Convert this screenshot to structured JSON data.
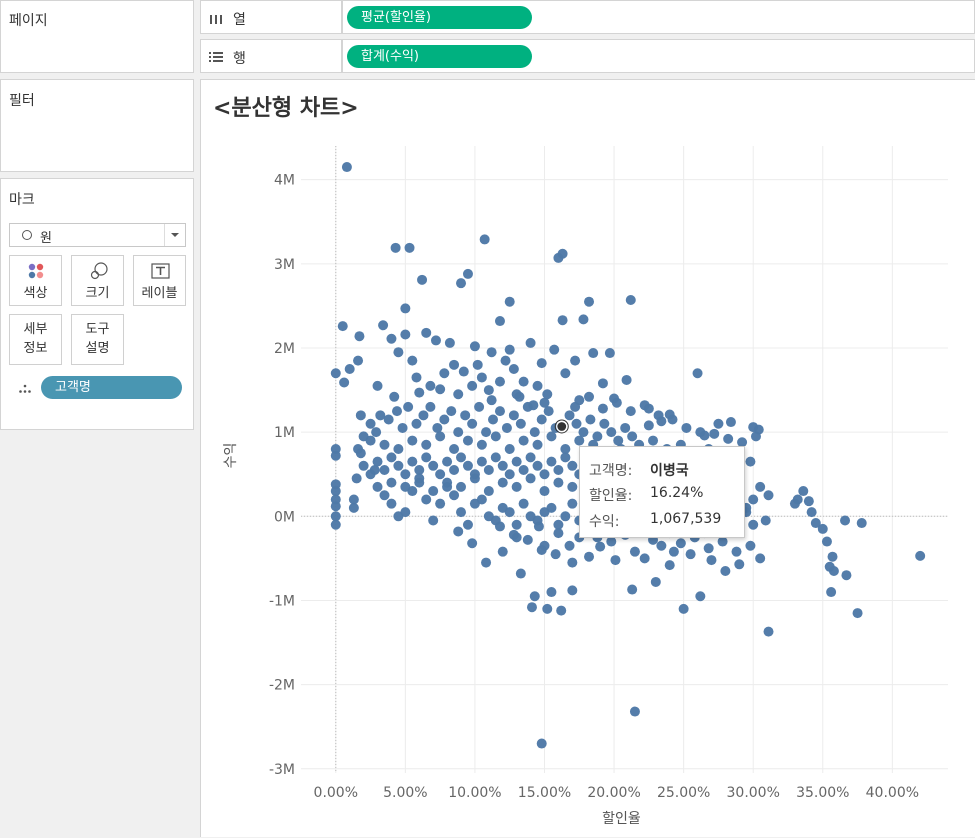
{
  "panels": {
    "pages_title": "페이지",
    "filters_title": "필터",
    "marks_title": "마크"
  },
  "marks": {
    "type": "원",
    "buttons": [
      {
        "label": "색상",
        "icon": "color-dots-icon"
      },
      {
        "label": "크기",
        "icon": "size-icon"
      },
      {
        "label": "레이블",
        "icon": "label-T-icon"
      }
    ],
    "detail_label_1": "세부",
    "detail_label_2": "정보",
    "tooltip_label_1": "도구",
    "tooltip_label_2": "설명",
    "detail_pill": "고객명"
  },
  "shelves": {
    "columns_label": "열",
    "columns_pill": "평균(할인율)",
    "rows_label": "행",
    "rows_pill": "합계(수익)",
    "pill_color": "#00b180"
  },
  "viz": {
    "title": "<분산형 차트>"
  },
  "tooltip": {
    "customer_key": "고객명:",
    "customer_value": "이병국",
    "discount_key": "할인율:",
    "discount_value": "16.24%",
    "profit_key": "수익:",
    "profit_value": "1,067,539"
  },
  "chart_data": {
    "type": "scatter",
    "xlabel": "할인율",
    "ylabel": "수익",
    "xlim": [
      -0.025,
      0.44
    ],
    "ylim": [
      -3.05,
      4.4
    ],
    "x_ticks": [
      0,
      0.05,
      0.1,
      0.15,
      0.2,
      0.25,
      0.3,
      0.35,
      0.4
    ],
    "x_tick_labels": [
      "0.00%",
      "5.00%",
      "10.00%",
      "15.00%",
      "20.00%",
      "25.00%",
      "30.00%",
      "35.00%",
      "40.00%"
    ],
    "y_ticks": [
      4,
      3,
      2,
      1,
      0,
      -1,
      -2,
      -3
    ],
    "y_tick_labels": [
      "4M",
      "3M",
      "2M",
      "1M",
      "0M",
      "-1M",
      "-2M",
      "-3M"
    ],
    "point_color": "#4e79a7",
    "highlight": {
      "x": 0.1624,
      "y": 1.0675
    },
    "grid": true,
    "points": [
      [
        0.008,
        4.15
      ],
      [
        0.043,
        3.19
      ],
      [
        0.053,
        3.19
      ],
      [
        0.107,
        3.29
      ],
      [
        0.095,
        2.88
      ],
      [
        0.09,
        2.77
      ],
      [
        0.062,
        2.81
      ],
      [
        0.05,
        2.47
      ],
      [
        0.16,
        3.07
      ],
      [
        0.163,
        3.12
      ],
      [
        0.125,
        2.55
      ],
      [
        0.118,
        2.32
      ],
      [
        0.212,
        2.57
      ],
      [
        0.182,
        2.55
      ],
      [
        0.163,
        2.33
      ],
      [
        0.178,
        2.34
      ],
      [
        0.005,
        2.26
      ],
      [
        0.017,
        2.14
      ],
      [
        0.034,
        2.27
      ],
      [
        0.04,
        2.11
      ],
      [
        0.05,
        2.16
      ],
      [
        0.065,
        2.18
      ],
      [
        0.072,
        2.09
      ],
      [
        0.082,
        2.06
      ],
      [
        0.1,
        2.02
      ],
      [
        0.112,
        1.95
      ],
      [
        0.125,
        1.98
      ],
      [
        0.14,
        2.06
      ],
      [
        0.157,
        1.98
      ],
      [
        0.185,
        1.94
      ],
      [
        0.197,
        1.94
      ],
      [
        0.209,
        1.62
      ],
      [
        0.26,
        1.7
      ],
      [
        0.0,
        1.7
      ],
      [
        0.01,
        1.75
      ],
      [
        0.016,
        1.85
      ],
      [
        0.03,
        1.55
      ],
      [
        0.045,
        1.95
      ],
      [
        0.055,
        1.85
      ],
      [
        0.085,
        1.8
      ],
      [
        0.092,
        1.72
      ],
      [
        0.105,
        1.65
      ],
      [
        0.118,
        1.6
      ],
      [
        0.135,
        1.6
      ],
      [
        0.148,
        1.82
      ],
      [
        0.165,
        1.7
      ],
      [
        0.006,
        1.59
      ],
      [
        0.042,
        1.42
      ],
      [
        0.06,
        1.47
      ],
      [
        0.075,
        1.51
      ],
      [
        0.088,
        1.45
      ],
      [
        0.11,
        1.5
      ],
      [
        0.13,
        1.45
      ],
      [
        0.15,
        1.35
      ],
      [
        0.175,
        1.38
      ],
      [
        0.2,
        1.4
      ],
      [
        0.225,
        1.28
      ],
      [
        0.24,
        1.21
      ],
      [
        0.018,
        1.2
      ],
      [
        0.029,
        1.0
      ],
      [
        0.225,
        1.08
      ],
      [
        0.234,
        1.13
      ],
      [
        0.265,
        0.96
      ],
      [
        0.275,
        1.1
      ],
      [
        0.284,
        1.12
      ],
      [
        0.3,
        1.06
      ],
      [
        0.304,
        1.03
      ],
      [
        0.305,
        0.35
      ],
      [
        0.311,
        0.25
      ],
      [
        0.33,
        0.15
      ],
      [
        0.336,
        0.3
      ],
      [
        0.332,
        0.2
      ],
      [
        0.34,
        0.18
      ],
      [
        0.342,
        0.05
      ],
      [
        0.345,
        -0.08
      ],
      [
        0.35,
        -0.15
      ],
      [
        0.353,
        -0.3
      ],
      [
        0.357,
        -0.48
      ],
      [
        0.366,
        -0.05
      ],
      [
        0.378,
        -0.08
      ],
      [
        0.355,
        -0.6
      ],
      [
        0.358,
        -0.65
      ],
      [
        0.367,
        -0.7
      ],
      [
        0.356,
        -0.9
      ],
      [
        0.375,
        -1.15
      ],
      [
        0.42,
        -0.47
      ],
      [
        0.311,
        -1.37
      ],
      [
        0.309,
        -0.05
      ],
      [
        0.305,
        -0.5
      ],
      [
        0.29,
        -0.57
      ],
      [
        0.28,
        -0.65
      ],
      [
        0.27,
        -0.52
      ],
      [
        0.262,
        -0.95
      ],
      [
        0.255,
        -0.45
      ],
      [
        0.25,
        -1.1
      ],
      [
        0.24,
        -0.58
      ],
      [
        0.23,
        -0.78
      ],
      [
        0.213,
        -0.87
      ],
      [
        0.201,
        -0.52
      ],
      [
        0.19,
        -0.36
      ],
      [
        0.182,
        -0.48
      ],
      [
        0.17,
        -0.55
      ],
      [
        0.17,
        -0.88
      ],
      [
        0.162,
        -1.12
      ],
      [
        0.155,
        -0.9
      ],
      [
        0.152,
        -1.1
      ],
      [
        0.143,
        -0.95
      ],
      [
        0.141,
        -1.08
      ],
      [
        0.133,
        -0.68
      ],
      [
        0.15,
        -0.35
      ],
      [
        0.215,
        -2.32
      ],
      [
        0.148,
        -2.7
      ],
      [
        0.108,
        -0.55
      ],
      [
        0.12,
        -0.42
      ],
      [
        0.13,
        -0.25
      ],
      [
        0.146,
        -0.12
      ],
      [
        0.16,
        -0.2
      ],
      [
        0.175,
        -0.25
      ],
      [
        0.215,
        -0.42
      ],
      [
        0.222,
        -0.5
      ],
      [
        0.234,
        -0.35
      ],
      [
        0.243,
        -0.42
      ],
      [
        0.0,
        0.8
      ],
      [
        0.0,
        0.72
      ],
      [
        0.0,
        0.38
      ],
      [
        0.0,
        0.3
      ],
      [
        0.0,
        0.2
      ],
      [
        0.0,
        0.12
      ],
      [
        0.0,
        0.0
      ],
      [
        0.0,
        -0.1
      ],
      [
        0.013,
        0.1
      ],
      [
        0.013,
        0.2
      ],
      [
        0.015,
        0.45
      ],
      [
        0.016,
        0.8
      ],
      [
        0.018,
        0.75
      ],
      [
        0.02,
        0.95
      ],
      [
        0.025,
        0.9
      ],
      [
        0.028,
        0.55
      ],
      [
        0.03,
        0.35
      ],
      [
        0.035,
        0.25
      ],
      [
        0.04,
        0.15
      ],
      [
        0.045,
        0.0
      ],
      [
        0.05,
        0.05
      ],
      [
        0.055,
        0.3
      ],
      [
        0.06,
        0.4
      ],
      [
        0.065,
        0.2
      ],
      [
        0.07,
        -0.05
      ],
      [
        0.075,
        0.15
      ],
      [
        0.08,
        0.35
      ],
      [
        0.085,
        0.25
      ],
      [
        0.09,
        0.05
      ],
      [
        0.095,
        -0.1
      ],
      [
        0.1,
        0.15
      ],
      [
        0.105,
        0.2
      ],
      [
        0.11,
        0.0
      ],
      [
        0.115,
        -0.05
      ],
      [
        0.12,
        0.1
      ],
      [
        0.125,
        0.05
      ],
      [
        0.13,
        -0.1
      ],
      [
        0.135,
        0.15
      ],
      [
        0.14,
        0.0
      ],
      [
        0.145,
        -0.05
      ],
      [
        0.15,
        0.05
      ],
      [
        0.155,
        0.1
      ],
      [
        0.16,
        -0.1
      ],
      [
        0.165,
        0.0
      ],
      [
        0.17,
        0.15
      ],
      [
        0.175,
        -0.05
      ],
      [
        0.18,
        0.05
      ],
      [
        0.185,
        0.1
      ],
      [
        0.19,
        0.2
      ],
      [
        0.195,
        0.05
      ],
      [
        0.2,
        -0.15
      ],
      [
        0.205,
        0.0
      ],
      [
        0.21,
        0.1
      ],
      [
        0.215,
        0.25
      ],
      [
        0.22,
        0.05
      ],
      [
        0.225,
        -0.05
      ],
      [
        0.23,
        0.1
      ],
      [
        0.235,
        0.0
      ],
      [
        0.24,
        -0.2
      ],
      [
        0.245,
        0.05
      ],
      [
        0.25,
        0.15
      ],
      [
        0.255,
        -0.1
      ],
      [
        0.26,
        0.05
      ],
      [
        0.265,
        -0.2
      ],
      [
        0.27,
        0.0
      ],
      [
        0.275,
        -0.05
      ],
      [
        0.28,
        0.1
      ],
      [
        0.285,
        -0.15
      ],
      [
        0.29,
        0.0
      ],
      [
        0.295,
        0.05
      ],
      [
        0.3,
        -0.1
      ],
      [
        0.025,
        1.1
      ],
      [
        0.032,
        1.2
      ],
      [
        0.038,
        1.15
      ],
      [
        0.044,
        1.25
      ],
      [
        0.048,
        1.05
      ],
      [
        0.052,
        1.3
      ],
      [
        0.058,
        1.1
      ],
      [
        0.063,
        1.2
      ],
      [
        0.068,
        1.3
      ],
      [
        0.073,
        1.05
      ],
      [
        0.078,
        1.15
      ],
      [
        0.083,
        1.25
      ],
      [
        0.088,
        1.0
      ],
      [
        0.093,
        1.2
      ],
      [
        0.098,
        1.1
      ],
      [
        0.103,
        1.3
      ],
      [
        0.108,
        1.0
      ],
      [
        0.113,
        1.15
      ],
      [
        0.118,
        1.25
      ],
      [
        0.123,
        1.05
      ],
      [
        0.128,
        1.2
      ],
      [
        0.133,
        1.1
      ],
      [
        0.138,
        1.3
      ],
      [
        0.143,
        1.0
      ],
      [
        0.148,
        1.15
      ],
      [
        0.153,
        1.25
      ],
      [
        0.158,
        1.05
      ],
      [
        0.168,
        1.2
      ],
      [
        0.173,
        1.1
      ],
      [
        0.178,
        1.0
      ],
      [
        0.183,
        1.15
      ],
      [
        0.188,
        0.95
      ],
      [
        0.193,
        1.1
      ],
      [
        0.198,
        1.0
      ],
      [
        0.203,
        0.9
      ],
      [
        0.208,
        1.05
      ],
      [
        0.213,
        0.95
      ],
      [
        0.218,
        0.85
      ],
      [
        0.228,
        0.9
      ],
      [
        0.238,
        0.8
      ],
      [
        0.248,
        0.85
      ],
      [
        0.258,
        0.75
      ],
      [
        0.268,
        0.8
      ],
      [
        0.278,
        0.7
      ],
      [
        0.288,
        0.75
      ],
      [
        0.298,
        0.65
      ],
      [
        0.02,
        0.6
      ],
      [
        0.025,
        0.5
      ],
      [
        0.03,
        0.65
      ],
      [
        0.035,
        0.55
      ],
      [
        0.04,
        0.7
      ],
      [
        0.045,
        0.6
      ],
      [
        0.05,
        0.5
      ],
      [
        0.055,
        0.65
      ],
      [
        0.06,
        0.55
      ],
      [
        0.065,
        0.7
      ],
      [
        0.07,
        0.6
      ],
      [
        0.075,
        0.5
      ],
      [
        0.08,
        0.65
      ],
      [
        0.085,
        0.55
      ],
      [
        0.09,
        0.7
      ],
      [
        0.095,
        0.6
      ],
      [
        0.1,
        0.5
      ],
      [
        0.105,
        0.65
      ],
      [
        0.11,
        0.55
      ],
      [
        0.115,
        0.7
      ],
      [
        0.12,
        0.6
      ],
      [
        0.125,
        0.5
      ],
      [
        0.13,
        0.65
      ],
      [
        0.135,
        0.55
      ],
      [
        0.14,
        0.7
      ],
      [
        0.145,
        0.6
      ],
      [
        0.15,
        0.5
      ],
      [
        0.155,
        0.65
      ],
      [
        0.16,
        0.55
      ],
      [
        0.165,
        0.7
      ],
      [
        0.17,
        0.6
      ],
      [
        0.175,
        0.5
      ],
      [
        0.18,
        0.65
      ],
      [
        0.185,
        0.55
      ],
      [
        0.19,
        0.7
      ],
      [
        0.195,
        0.6
      ],
      [
        0.2,
        0.5
      ],
      [
        0.205,
        0.65
      ],
      [
        0.21,
        0.55
      ],
      [
        0.215,
        0.7
      ],
      [
        0.22,
        0.6
      ],
      [
        0.225,
        0.45
      ],
      [
        0.23,
        0.55
      ],
      [
        0.235,
        0.4
      ],
      [
        0.24,
        0.5
      ],
      [
        0.245,
        0.35
      ],
      [
        0.25,
        0.45
      ],
      [
        0.255,
        0.3
      ],
      [
        0.26,
        0.4
      ],
      [
        0.265,
        0.25
      ],
      [
        0.27,
        0.35
      ],
      [
        0.275,
        0.2
      ],
      [
        0.28,
        0.3
      ],
      [
        0.285,
        0.15
      ],
      [
        0.29,
        0.25
      ],
      [
        0.295,
        0.1
      ],
      [
        0.3,
        0.2
      ],
      [
        0.035,
        0.85
      ],
      [
        0.045,
        0.8
      ],
      [
        0.055,
        0.9
      ],
      [
        0.065,
        0.85
      ],
      [
        0.075,
        0.95
      ],
      [
        0.085,
        0.8
      ],
      [
        0.095,
        0.9
      ],
      [
        0.105,
        0.85
      ],
      [
        0.115,
        0.95
      ],
      [
        0.125,
        0.8
      ],
      [
        0.135,
        0.9
      ],
      [
        0.145,
        0.85
      ],
      [
        0.155,
        0.95
      ],
      [
        0.165,
        0.8
      ],
      [
        0.175,
        0.9
      ],
      [
        0.185,
        0.85
      ],
      [
        0.195,
        0.75
      ],
      [
        0.205,
        0.8
      ],
      [
        0.04,
        0.4
      ],
      [
        0.05,
        0.35
      ],
      [
        0.06,
        0.45
      ],
      [
        0.07,
        0.3
      ],
      [
        0.08,
        0.4
      ],
      [
        0.09,
        0.35
      ],
      [
        0.1,
        0.45
      ],
      [
        0.11,
        0.3
      ],
      [
        0.12,
        0.4
      ],
      [
        0.13,
        0.35
      ],
      [
        0.14,
        0.45
      ],
      [
        0.15,
        0.3
      ],
      [
        0.16,
        0.4
      ],
      [
        0.17,
        0.35
      ],
      [
        0.18,
        0.45
      ],
      [
        0.19,
        0.3
      ],
      [
        0.2,
        0.4
      ],
      [
        0.21,
        0.35
      ],
      [
        0.22,
        0.3
      ],
      [
        0.058,
        1.65
      ],
      [
        0.068,
        1.55
      ],
      [
        0.078,
        1.7
      ],
      [
        0.098,
        1.55
      ],
      [
        0.128,
        1.75
      ],
      [
        0.145,
        1.55
      ],
      [
        0.172,
        1.85
      ],
      [
        0.192,
        1.58
      ],
      [
        0.102,
        1.8
      ],
      [
        0.122,
        1.85
      ],
      [
        0.088,
        -0.18
      ],
      [
        0.098,
        -0.32
      ],
      [
        0.118,
        -0.12
      ],
      [
        0.128,
        -0.22
      ],
      [
        0.138,
        -0.28
      ],
      [
        0.148,
        -0.4
      ],
      [
        0.158,
        -0.45
      ],
      [
        0.168,
        -0.35
      ],
      [
        0.188,
        -0.25
      ],
      [
        0.198,
        -0.3
      ],
      [
        0.208,
        -0.22
      ],
      [
        0.228,
        -0.28
      ],
      [
        0.238,
        -0.15
      ],
      [
        0.248,
        -0.32
      ],
      [
        0.258,
        -0.25
      ],
      [
        0.268,
        -0.38
      ],
      [
        0.278,
        -0.3
      ],
      [
        0.288,
        -0.42
      ],
      [
        0.298,
        -0.35
      ],
      [
        0.112,
        1.38
      ],
      [
        0.132,
        1.42
      ],
      [
        0.142,
        1.32
      ],
      [
        0.152,
        1.45
      ],
      [
        0.172,
        1.3
      ],
      [
        0.182,
        1.42
      ],
      [
        0.192,
        1.28
      ],
      [
        0.202,
        1.35
      ],
      [
        0.212,
        1.25
      ],
      [
        0.222,
        1.32
      ],
      [
        0.232,
        1.2
      ],
      [
        0.242,
        1.15
      ],
      [
        0.252,
        1.05
      ],
      [
        0.262,
        1.0
      ],
      [
        0.272,
        0.98
      ],
      [
        0.282,
        0.92
      ],
      [
        0.292,
        0.88
      ],
      [
        0.302,
        0.95
      ]
    ]
  }
}
